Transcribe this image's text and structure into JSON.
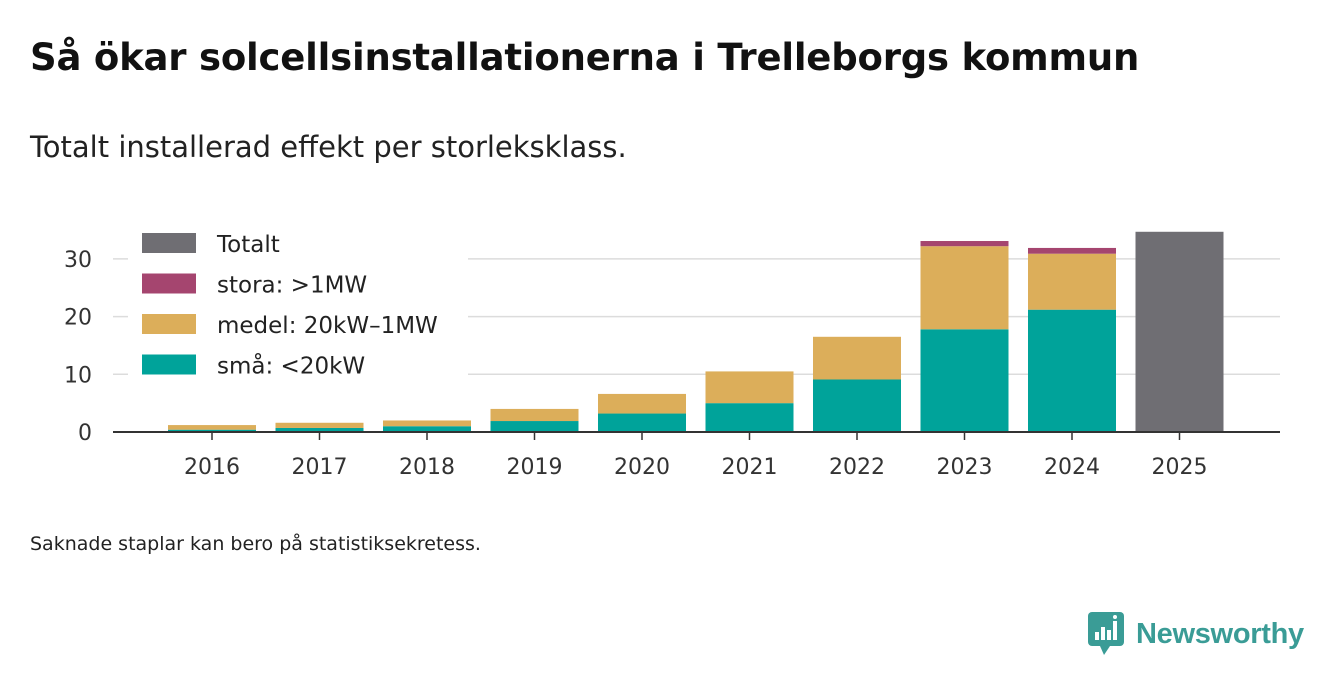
{
  "header": {
    "title": "Så ökar solcellsinstallationerna i Trelleborgs kommun",
    "subtitle": "Totalt installerad effekt per storleksklass."
  },
  "footer": {
    "note": "Saknade staplar kan bero på statistiksekretess.",
    "brand": "Newsworthy"
  },
  "chart_data": {
    "type": "bar",
    "stacked": true,
    "title": "",
    "xlabel": "",
    "ylabel": "",
    "ylim": [
      0,
      35
    ],
    "yticks": [
      0,
      10,
      20,
      30
    ],
    "grid": true,
    "legend_position": "top-left",
    "categories": [
      "2016",
      "2017",
      "2018",
      "2019",
      "2020",
      "2021",
      "2022",
      "2023",
      "2024",
      "2025"
    ],
    "series": [
      {
        "name": "små: <20kW",
        "color": "#00a39a",
        "values": [
          0.4,
          0.7,
          1.0,
          1.9,
          3.2,
          5.0,
          9.1,
          17.8,
          21.2,
          null
        ]
      },
      {
        "name": "medel: 20kW–1MW",
        "color": "#dcae5a",
        "values": [
          0.8,
          0.9,
          1.0,
          2.1,
          3.4,
          5.5,
          7.4,
          14.4,
          9.7,
          null
        ]
      },
      {
        "name": "stora: >1MW",
        "color": "#a5456f",
        "values": [
          null,
          null,
          null,
          null,
          null,
          null,
          null,
          0.9,
          1.0,
          null
        ]
      },
      {
        "name": "Totalt",
        "color": "#6f6e73",
        "values": [
          null,
          null,
          null,
          null,
          null,
          null,
          null,
          null,
          null,
          34.7
        ]
      }
    ],
    "legend_order": [
      "Totalt",
      "stora: >1MW",
      "medel: 20kW–1MW",
      "små: <20kW"
    ]
  }
}
